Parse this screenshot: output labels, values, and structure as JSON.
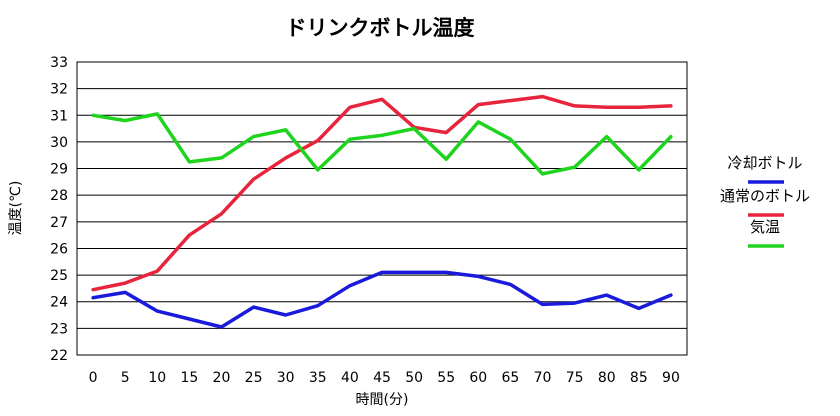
{
  "chart_data": {
    "type": "line",
    "title": "ドリンクボトル温度",
    "xlabel": "時間(分)",
    "ylabel": "温度(℃)",
    "ylim": [
      22,
      33
    ],
    "y_ticks": [
      22,
      23,
      24,
      25,
      26,
      27,
      28,
      29,
      30,
      31,
      32,
      33
    ],
    "grid": true,
    "legend_position": "right",
    "x": [
      0,
      5,
      10,
      15,
      20,
      25,
      30,
      35,
      40,
      45,
      50,
      55,
      60,
      65,
      70,
      75,
      80,
      85,
      90
    ],
    "series": [
      {
        "name": "冷却ボトル",
        "color": "#1a1adc",
        "values": [
          24.15,
          24.35,
          23.65,
          23.35,
          23.05,
          23.8,
          23.5,
          23.85,
          24.6,
          25.1,
          25.1,
          25.1,
          24.95,
          24.65,
          23.9,
          23.95,
          24.25,
          23.75,
          24.25
        ]
      },
      {
        "name": "通常のボトル",
        "color": "#e8243c",
        "values": [
          24.45,
          24.7,
          25.15,
          26.5,
          27.3,
          28.6,
          29.4,
          30.05,
          31.3,
          31.6,
          30.55,
          30.35,
          31.4,
          31.55,
          31.7,
          31.35,
          31.3,
          31.3,
          31.35
        ]
      },
      {
        "name": "気温",
        "color": "#1ed41e",
        "values": [
          31.0,
          30.8,
          31.05,
          29.25,
          29.4,
          30.2,
          30.45,
          28.95,
          30.1,
          30.25,
          30.5,
          29.35,
          30.75,
          30.1,
          28.8,
          29.05,
          30.2,
          28.95,
          30.2
        ]
      }
    ]
  }
}
